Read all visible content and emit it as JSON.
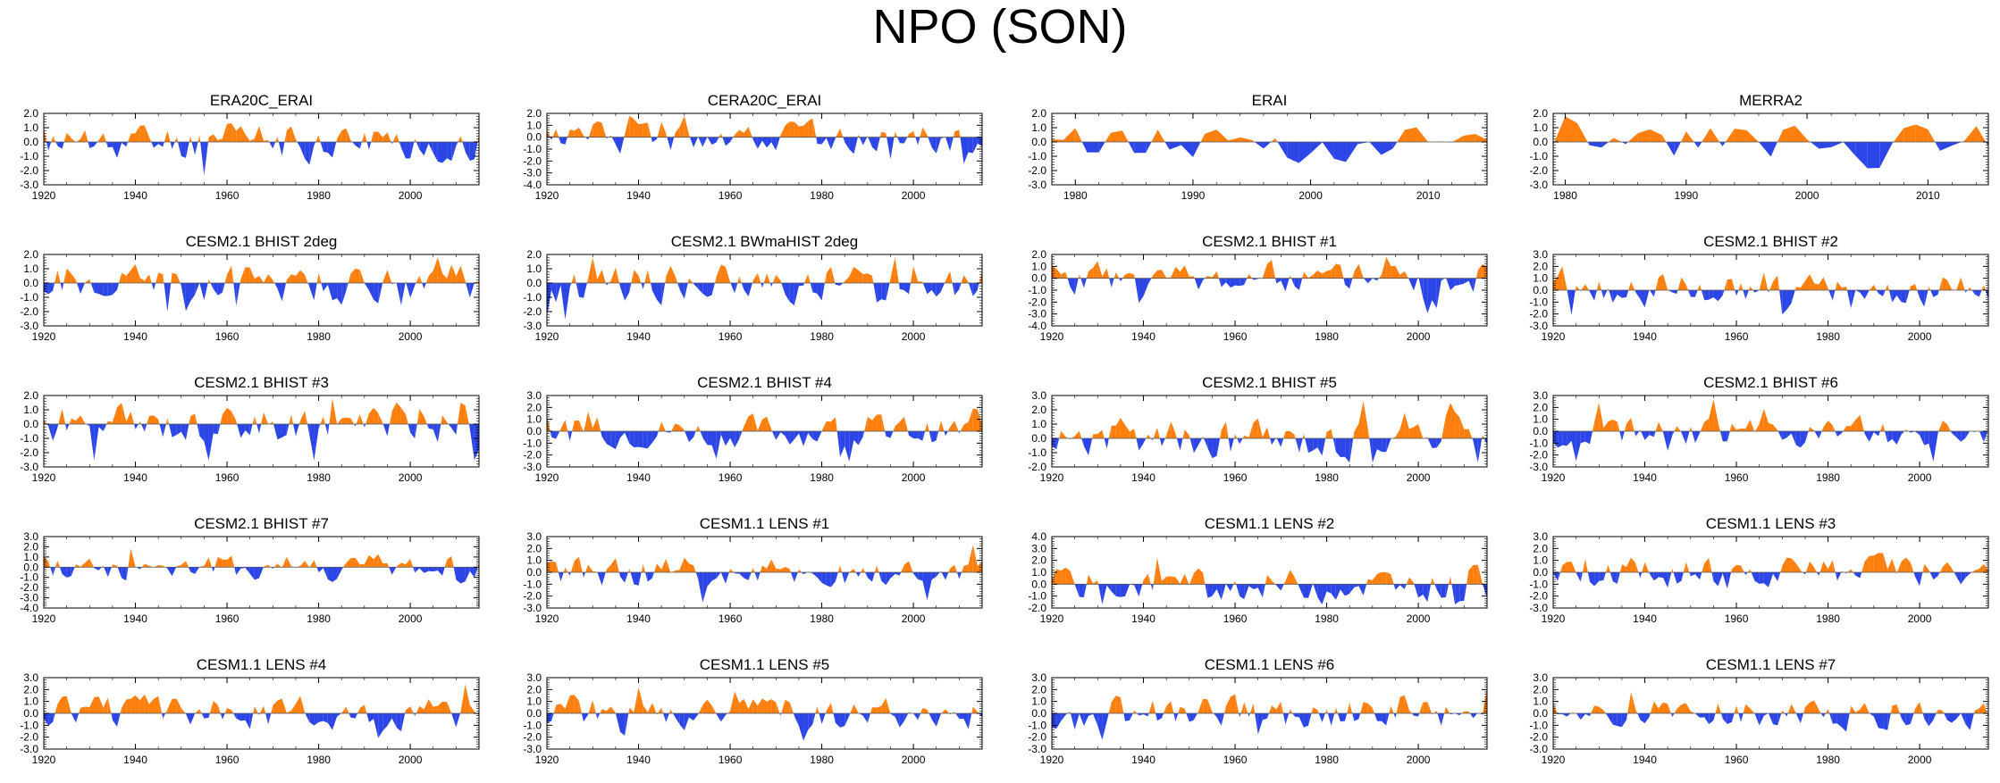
{
  "page": {
    "title": "NPO (SON)"
  },
  "colors": {
    "positive": "#ff7f0e",
    "negative": "#2b45e6",
    "axis": "#000000"
  },
  "chart_data": [
    {
      "type": "area",
      "title": "ERA20C_ERAI",
      "xlim": [
        1920,
        2015
      ],
      "ylim": [
        -3.0,
        2.0
      ],
      "yticks": [
        "2.0",
        "1.0",
        "0.0",
        "-1.0",
        "-2.0",
        "-3.0"
      ],
      "xticks": [
        "1920",
        "1940",
        "1960",
        "1980",
        "2000"
      ],
      "seed": 11
    },
    {
      "type": "area",
      "title": "CERA20C_ERAI",
      "xlim": [
        1920,
        2015
      ],
      "ylim": [
        -4.0,
        2.0
      ],
      "yticks": [
        "2.0",
        "1.0",
        "0.0",
        "-1.0",
        "-2.0",
        "-3.0",
        "-4.0"
      ],
      "xticks": [
        "1920",
        "1940",
        "1960",
        "1980",
        "2000"
      ],
      "seed": 12
    },
    {
      "type": "area",
      "title": "ERAI",
      "xlim": [
        1978,
        2015
      ],
      "ylim": [
        -3.0,
        2.0
      ],
      "yticks": [
        "2.0",
        "1.0",
        "0.0",
        "-1.0",
        "-2.0",
        "-3.0"
      ],
      "xticks": [
        "1980",
        "1990",
        "2000",
        "2010"
      ],
      "seed": 13
    },
    {
      "type": "area",
      "title": "MERRA2",
      "xlim": [
        1979,
        2015
      ],
      "ylim": [
        -3.0,
        2.0
      ],
      "yticks": [
        "2.0",
        "1.0",
        "0.0",
        "-1.0",
        "-2.0",
        "-3.0"
      ],
      "xticks": [
        "1980",
        "1990",
        "2000",
        "2010"
      ],
      "seed": 14
    },
    {
      "type": "area",
      "title": "CESM2.1 BHIST 2deg",
      "xlim": [
        1920,
        2015
      ],
      "ylim": [
        -3.0,
        2.0
      ],
      "yticks": [
        "2.0",
        "1.0",
        "0.0",
        "-1.0",
        "-2.0",
        "-3.0"
      ],
      "xticks": [
        "1920",
        "1940",
        "1960",
        "1980",
        "2000"
      ],
      "seed": 21
    },
    {
      "type": "area",
      "title": "CESM2.1 BWmaHIST 2deg",
      "xlim": [
        1920,
        2015
      ],
      "ylim": [
        -3.0,
        2.0
      ],
      "yticks": [
        "2.0",
        "1.0",
        "0.0",
        "-1.0",
        "-2.0",
        "-3.0"
      ],
      "xticks": [
        "1920",
        "1940",
        "1960",
        "1980",
        "2000"
      ],
      "seed": 22
    },
    {
      "type": "area",
      "title": "CESM2.1 BHIST #1",
      "xlim": [
        1920,
        2015
      ],
      "ylim": [
        -4.0,
        2.0
      ],
      "yticks": [
        "2.0",
        "1.0",
        "0.0",
        "-1.0",
        "-2.0",
        "-3.0",
        "-4.0"
      ],
      "xticks": [
        "1920",
        "1940",
        "1960",
        "1980",
        "2000"
      ],
      "seed": 23
    },
    {
      "type": "area",
      "title": "CESM2.1 BHIST #2",
      "xlim": [
        1920,
        2015
      ],
      "ylim": [
        -3.0,
        3.0
      ],
      "yticks": [
        "3.0",
        "2.0",
        "1.0",
        "0.0",
        "-1.0",
        "-2.0",
        "-3.0"
      ],
      "xticks": [
        "1920",
        "1940",
        "1960",
        "1980",
        "2000"
      ],
      "seed": 24
    },
    {
      "type": "area",
      "title": "CESM2.1 BHIST #3",
      "xlim": [
        1920,
        2015
      ],
      "ylim": [
        -3.0,
        2.0
      ],
      "yticks": [
        "2.0",
        "1.0",
        "0.0",
        "-1.0",
        "-2.0",
        "-3.0"
      ],
      "xticks": [
        "1920",
        "1940",
        "1960",
        "1980",
        "2000"
      ],
      "seed": 31
    },
    {
      "type": "area",
      "title": "CESM2.1 BHIST #4",
      "xlim": [
        1920,
        2015
      ],
      "ylim": [
        -3.0,
        3.0
      ],
      "yticks": [
        "3.0",
        "2.0",
        "1.0",
        "0.0",
        "-1.0",
        "-2.0",
        "-3.0"
      ],
      "xticks": [
        "1920",
        "1940",
        "1960",
        "1980",
        "2000"
      ],
      "seed": 32
    },
    {
      "type": "area",
      "title": "CESM2.1 BHIST #5",
      "xlim": [
        1920,
        2015
      ],
      "ylim": [
        -2.0,
        3.0
      ],
      "yticks": [
        "3.0",
        "2.0",
        "1.0",
        "0.0",
        "-1.0",
        "-2.0"
      ],
      "xticks": [
        "1920",
        "1940",
        "1960",
        "1980",
        "2000"
      ],
      "seed": 33
    },
    {
      "type": "area",
      "title": "CESM2.1 BHIST #6",
      "xlim": [
        1920,
        2015
      ],
      "ylim": [
        -3.0,
        3.0
      ],
      "yticks": [
        "3.0",
        "2.0",
        "1.0",
        "0.0",
        "-1.0",
        "-2.0",
        "-3.0"
      ],
      "xticks": [
        "1920",
        "1940",
        "1960",
        "1980",
        "2000"
      ],
      "seed": 34
    },
    {
      "type": "area",
      "title": "CESM2.1 BHIST #7",
      "xlim": [
        1920,
        2015
      ],
      "ylim": [
        -4.0,
        3.0
      ],
      "yticks": [
        "3.0",
        "2.0",
        "1.0",
        "0.0",
        "-1.0",
        "-2.0",
        "-3.0",
        "-4.0"
      ],
      "xticks": [
        "1920",
        "1940",
        "1960",
        "1980",
        "2000"
      ],
      "seed": 41
    },
    {
      "type": "area",
      "title": "CESM1.1 LENS #1",
      "xlim": [
        1920,
        2015
      ],
      "ylim": [
        -3.0,
        3.0
      ],
      "yticks": [
        "3.0",
        "2.0",
        "1.0",
        "0.0",
        "-1.0",
        "-2.0",
        "-3.0"
      ],
      "xticks": [
        "1920",
        "1940",
        "1960",
        "1980",
        "2000"
      ],
      "seed": 42
    },
    {
      "type": "area",
      "title": "CESM1.1 LENS #2",
      "xlim": [
        1920,
        2015
      ],
      "ylim": [
        -2.0,
        4.0
      ],
      "yticks": [
        "4.0",
        "3.0",
        "2.0",
        "1.0",
        "0.0",
        "-1.0",
        "-2.0"
      ],
      "xticks": [
        "1920",
        "1940",
        "1960",
        "1980",
        "2000"
      ],
      "seed": 43
    },
    {
      "type": "area",
      "title": "CESM1.1 LENS #3",
      "xlim": [
        1920,
        2015
      ],
      "ylim": [
        -3.0,
        3.0
      ],
      "yticks": [
        "3.0",
        "2.0",
        "1.0",
        "0.0",
        "-1.0",
        "-2.0",
        "-3.0"
      ],
      "xticks": [
        "1920",
        "1940",
        "1960",
        "1980",
        "2000"
      ],
      "seed": 44
    },
    {
      "type": "area",
      "title": "CESM1.1 LENS #4",
      "xlim": [
        1920,
        2015
      ],
      "ylim": [
        -3.0,
        3.0
      ],
      "yticks": [
        "3.0",
        "2.0",
        "1.0",
        "0.0",
        "-1.0",
        "-2.0",
        "-3.0"
      ],
      "xticks": [
        "1920",
        "1940",
        "1960",
        "1980",
        "2000"
      ],
      "seed": 51
    },
    {
      "type": "area",
      "title": "CESM1.1 LENS #5",
      "xlim": [
        1920,
        2015
      ],
      "ylim": [
        -3.0,
        3.0
      ],
      "yticks": [
        "3.0",
        "2.0",
        "1.0",
        "0.0",
        "-1.0",
        "-2.0",
        "-3.0"
      ],
      "xticks": [
        "1920",
        "1940",
        "1960",
        "1980",
        "2000"
      ],
      "seed": 52
    },
    {
      "type": "area",
      "title": "CESM1.1 LENS #6",
      "xlim": [
        1920,
        2015
      ],
      "ylim": [
        -3.0,
        3.0
      ],
      "yticks": [
        "3.0",
        "2.0",
        "1.0",
        "0.0",
        "-1.0",
        "-2.0",
        "-3.0"
      ],
      "xticks": [
        "1920",
        "1940",
        "1960",
        "1980",
        "2000"
      ],
      "seed": 53
    },
    {
      "type": "area",
      "title": "CESM1.1 LENS #7",
      "xlim": [
        1920,
        2015
      ],
      "ylim": [
        -3.0,
        3.0
      ],
      "yticks": [
        "3.0",
        "2.0",
        "1.0",
        "0.0",
        "-1.0",
        "-2.0",
        "-3.0"
      ],
      "xticks": [
        "1920",
        "1940",
        "1960",
        "1980",
        "2000"
      ],
      "seed": 54
    }
  ]
}
